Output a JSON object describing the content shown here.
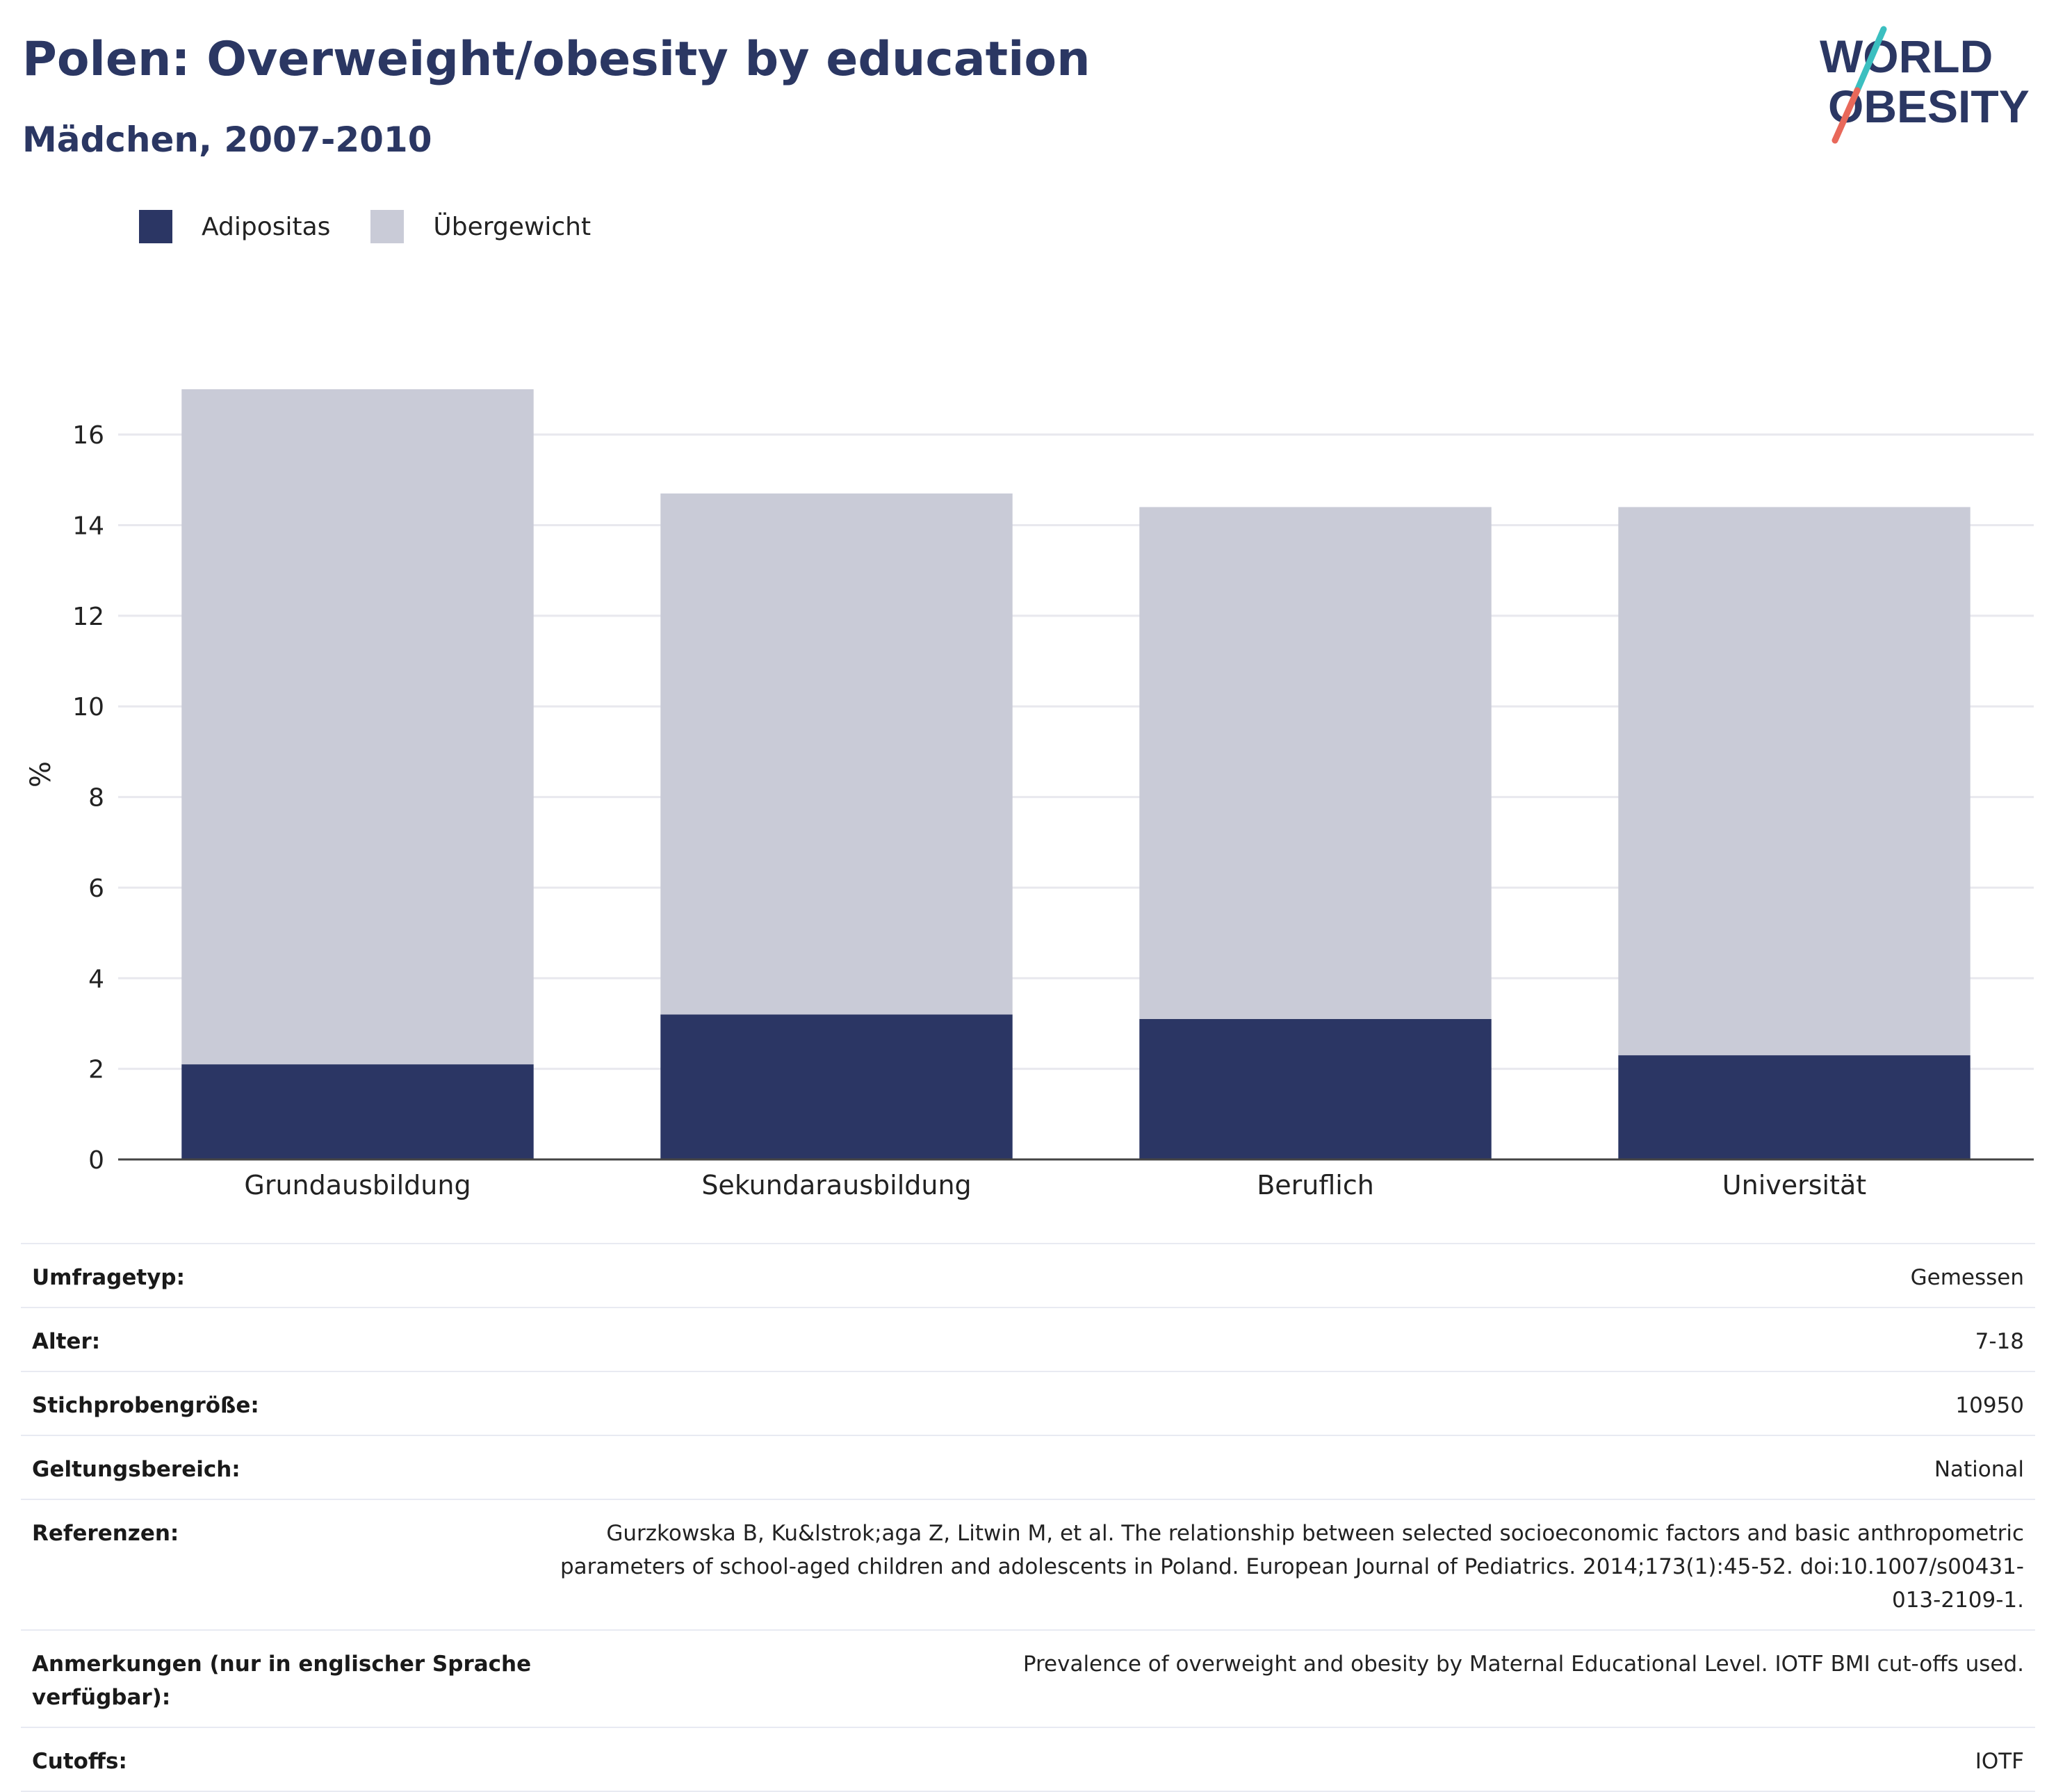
{
  "header": {
    "title": "Polen: Overweight/obesity by education",
    "subtitle": "Mädchen, 2007-2010"
  },
  "logo": {
    "line1": "WORLD",
    "line2": "OBESITY",
    "slash_top_color": "#3bbfc0",
    "slash_bottom_color": "#e8685a",
    "text_color": "#2b3763"
  },
  "colors": {
    "adipositas": "#2b3664",
    "uebergewicht": "#c9cbd7",
    "axis": "#444444",
    "grid": "#e8e8ee",
    "title": "#2b3763"
  },
  "legend": [
    {
      "label": "Adipositas",
      "color": "#2b3664"
    },
    {
      "label": "Übergewicht",
      "color": "#c9cbd7"
    }
  ],
  "chart_data": {
    "type": "bar",
    "stacked": true,
    "categories": [
      "Grundausbildung",
      "Sekundarausbildung",
      "Beruflich",
      "Universität"
    ],
    "series": [
      {
        "name": "Adipositas",
        "values": [
          2.1,
          3.2,
          3.1,
          2.3
        ]
      },
      {
        "name": "Übergewicht",
        "values": [
          14.9,
          11.5,
          11.3,
          12.1
        ]
      }
    ],
    "totals": [
      17.0,
      14.7,
      14.4,
      14.4
    ],
    "ylabel": "%",
    "xlabel": "",
    "ylim": [
      0,
      17
    ],
    "yticks": [
      0,
      2,
      4,
      6,
      8,
      10,
      12,
      14,
      16
    ],
    "grid": true,
    "legend_position": "top-left"
  },
  "info": [
    {
      "label": "Umfragetyp:",
      "value": "Gemessen"
    },
    {
      "label": "Alter:",
      "value": "7-18"
    },
    {
      "label": "Stichprobengröße:",
      "value": "10950"
    },
    {
      "label": "Geltungsbereich:",
      "value": "National"
    },
    {
      "label": "Referenzen:",
      "value": "Gurzkowska B, Ku&lstrok;aga Z, Litwin M, et al. The relationship between selected socioeconomic factors and basic anthropometric parameters of school-aged children and adolescents in Poland. European Journal of Pediatrics. 2014;173(1):45-52. doi:10.1007/s00431-013-2109-1."
    },
    {
      "label": "Anmerkungen (nur in englischer Sprache verfügbar):",
      "value": "Prevalence of overweight and obesity by Maternal Educational Level. IOTF BMI cut-offs used."
    },
    {
      "label": "Cutoffs:",
      "value": "IOTF"
    }
  ]
}
